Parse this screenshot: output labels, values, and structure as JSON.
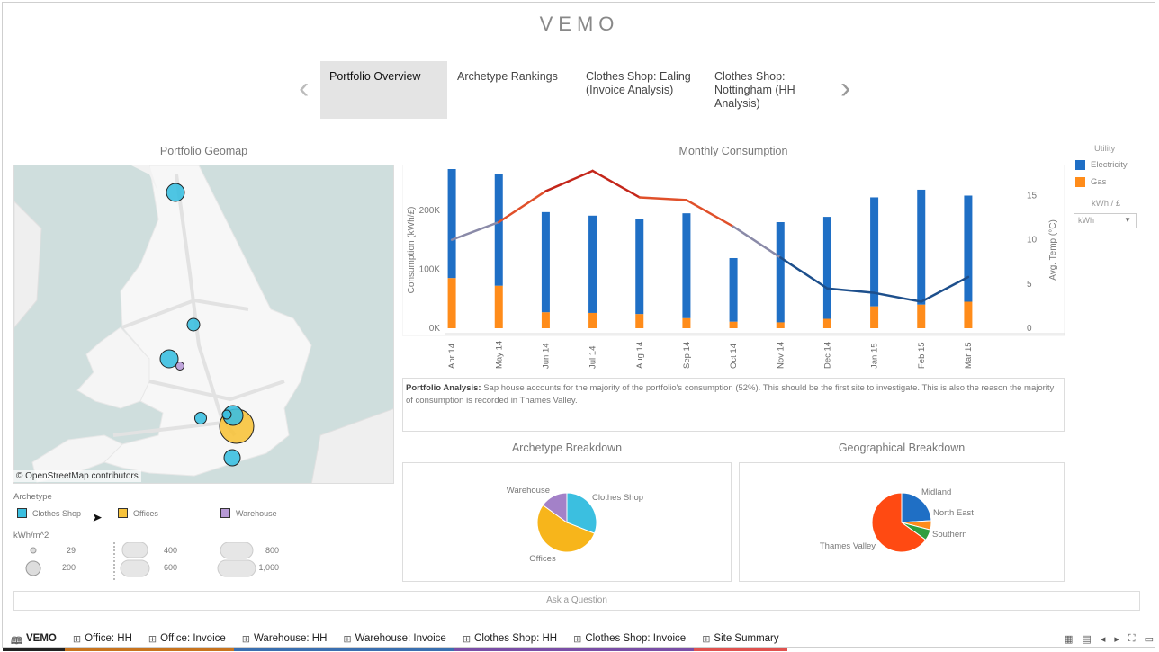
{
  "app": {
    "title": "VEMO"
  },
  "tabs": [
    {
      "label": "Portfolio Overview",
      "active": true
    },
    {
      "label": "Archetype Rankings"
    },
    {
      "label": "Clothes Shop: Ealing (Invoice Analysis)"
    },
    {
      "label": "Clothes Shop: Nottingham (HH Analysis)"
    }
  ],
  "geomap": {
    "title": "Portfolio Geomap",
    "attribution": "© OpenStreetMap contributors",
    "archetype_title": "Archetype",
    "archetypes": [
      {
        "label": "Clothes Shop",
        "color": "#3bbfe0"
      },
      {
        "label": "Offices",
        "color": "#f7c33c"
      },
      {
        "label": "Warehouse",
        "color": "#b79ad6"
      }
    ],
    "size_title": "kWh/m^2",
    "sizes": [
      "29",
      "200",
      "400",
      "600",
      "800",
      "1,060"
    ]
  },
  "consumption": {
    "title": "Monthly Consumption",
    "y_left_label": "Consumption (kWh/£)",
    "y_right_label": "Avg. Temp (°C)",
    "y_left_ticks": [
      "0K",
      "100K",
      "200K"
    ],
    "y_right_ticks": [
      "0",
      "5",
      "10",
      "15"
    ]
  },
  "chart_data": {
    "type": "bar",
    "categories": [
      "Apr 14",
      "May 14",
      "Jun 14",
      "Jul 14",
      "Aug 14",
      "Sep 14",
      "Oct 14",
      "Nov 14",
      "Dec 14",
      "Jan 15",
      "Feb 15",
      "Mar 15"
    ],
    "series": [
      {
        "name": "Electricity",
        "values": [
          185000,
          190000,
          170000,
          165000,
          162000,
          178000,
          108000,
          170000,
          173000,
          185000,
          195000,
          180000
        ]
      },
      {
        "name": "Gas",
        "values": [
          85000,
          72000,
          27000,
          26000,
          24000,
          17000,
          11000,
          10000,
          16000,
          37000,
          40000,
          45000
        ]
      },
      {
        "name": "Avg. Temp",
        "type": "line",
        "values": [
          10,
          12,
          15.5,
          17.8,
          14.8,
          14.5,
          11.5,
          8,
          4.5,
          4,
          3,
          5.8
        ]
      }
    ],
    "ylim": [
      0,
      270000
    ],
    "y2lim": [
      0,
      18
    ],
    "grid": false,
    "legend": "right"
  },
  "analysis": {
    "label": "Portfolio Analysis:",
    "text": "Sap house accounts for the majority of the portfolio's consumption (52%). This should be the first site to investigate. This is also the reason the majority of consumption is recorded in Thames Valley."
  },
  "utility": {
    "title": "Utility",
    "items": [
      {
        "label": "Electricity",
        "color": "#1f6fc5"
      },
      {
        "label": "Gas",
        "color": "#ff8c1a"
      }
    ],
    "unit_title": "kWh / £",
    "unit_value": "kWh"
  },
  "archetype_breakdown": {
    "title": "Archetype Breakdown",
    "slices": [
      {
        "label": "Clothes Shop",
        "value": 31,
        "color": "#3bbfe0"
      },
      {
        "label": "Offices",
        "value": 54,
        "color": "#f7b51b"
      },
      {
        "label": "Warehouse",
        "value": 15,
        "color": "#a381c8"
      }
    ]
  },
  "geo_breakdown": {
    "title": "Geographical Breakdown",
    "slices": [
      {
        "label": "Midland",
        "value": 24,
        "color": "#1f6fc5"
      },
      {
        "label": "North East",
        "value": 5,
        "color": "#ff8c1a"
      },
      {
        "label": "Southern",
        "value": 6,
        "color": "#2e9e3e"
      },
      {
        "label": "Thames Valley",
        "value": 65,
        "color": "#ff4a12"
      }
    ]
  },
  "ask": {
    "placeholder": "Ask a Question"
  },
  "sheets": [
    {
      "label": "VEMO",
      "active": true,
      "color": "#222"
    },
    {
      "label": "Office: HH",
      "color": "#c8741e"
    },
    {
      "label": "Office: Invoice",
      "color": "#c8741e"
    },
    {
      "label": "Warehouse: HH",
      "color": "#3a6fb0"
    },
    {
      "label": "Warehouse: Invoice",
      "color": "#3a6fb0"
    },
    {
      "label": "Clothes Shop: HH",
      "color": "#7a4ea6"
    },
    {
      "label": "Clothes Shop: Invoice",
      "color": "#7a4ea6"
    },
    {
      "label": "Site Summary",
      "color": "#e0524f"
    }
  ]
}
